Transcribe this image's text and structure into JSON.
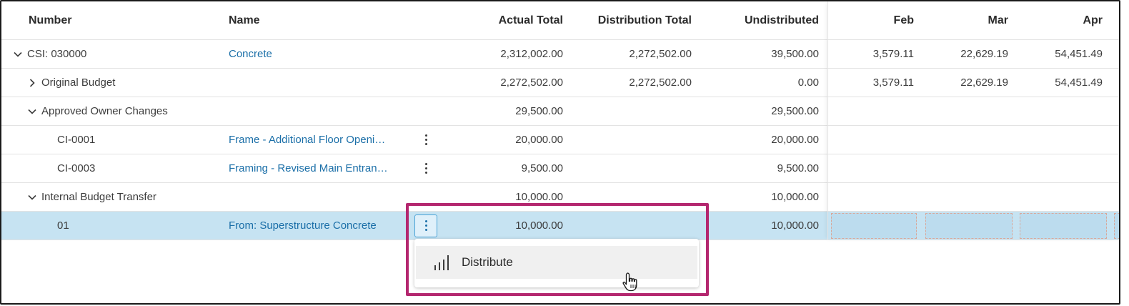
{
  "columns": {
    "number": "Number",
    "name": "Name",
    "actual_total": "Actual Total",
    "distribution_total": "Distribution Total",
    "undistributed": "Undistributed",
    "months": [
      "Feb",
      "Mar",
      "Apr"
    ]
  },
  "rows": [
    {
      "number": "CSI: 030000",
      "name": "Concrete",
      "actual": "2,312,002.00",
      "distribution": "2,272,502.00",
      "undistributed": "39,500.00",
      "feb": "3,579.11",
      "mar": "22,629.19",
      "apr": "54,451.49"
    },
    {
      "number": "Original Budget",
      "name": "",
      "actual": "2,272,502.00",
      "distribution": "2,272,502.00",
      "undistributed": "0.00",
      "feb": "3,579.11",
      "mar": "22,629.19",
      "apr": "54,451.49"
    },
    {
      "number": "Approved Owner Changes",
      "name": "",
      "actual": "29,500.00",
      "distribution": "",
      "undistributed": "29,500.00",
      "feb": "",
      "mar": "",
      "apr": ""
    },
    {
      "number": "CI-0001",
      "name": "Frame - Additional Floor Openi…",
      "actual": "20,000.00",
      "distribution": "",
      "undistributed": "20,000.00",
      "feb": "",
      "mar": "",
      "apr": ""
    },
    {
      "number": "CI-0003",
      "name": "Framing - Revised Main Entran…",
      "actual": "9,500.00",
      "distribution": "",
      "undistributed": "9,500.00",
      "feb": "",
      "mar": "",
      "apr": ""
    },
    {
      "number": "Internal Budget Transfer",
      "name": "",
      "actual": "10,000.00",
      "distribution": "",
      "undistributed": "10,000.00",
      "feb": "",
      "mar": "",
      "apr": ""
    },
    {
      "number": "01",
      "name": "From: Superstructure Concrete",
      "actual": "10,000.00",
      "distribution": "",
      "undistributed": "10,000.00",
      "feb": "",
      "mar": "",
      "apr": ""
    }
  ],
  "menu": {
    "items": [
      {
        "label": "Distribute",
        "icon": "bar-chart-icon"
      }
    ]
  },
  "colors": {
    "link": "#1b6fa8",
    "selected_row": "#c6e3f2",
    "highlight_border": "#b4276f"
  }
}
